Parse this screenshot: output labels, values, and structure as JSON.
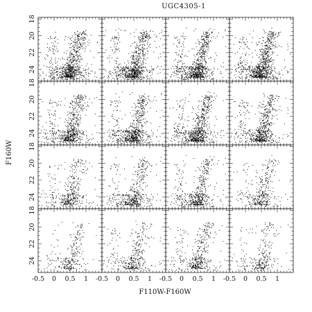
{
  "chart_data": {
    "type": "scatter",
    "title": "UGC4305-1",
    "xlabel": "F110W-F160W",
    "ylabel": "F160W",
    "layout": {
      "rows": 4,
      "cols": 4
    },
    "xlim": [
      -0.5,
      1.5
    ],
    "ylim": [
      25.4,
      17.8
    ],
    "y_inverted": true,
    "xticks": [
      -0.5,
      0,
      0.5,
      1
    ],
    "xtick_labels": [
      "-0.5",
      "0",
      "0.5",
      "1"
    ],
    "yticks": [
      18,
      20,
      22,
      24
    ],
    "ytick_labels": [
      "18",
      "20",
      "22",
      "24"
    ],
    "grid": false,
    "legend": "none",
    "panel_star_density": [
      [
        0.95,
        0.95,
        0.95,
        1.0
      ],
      [
        0.75,
        0.8,
        0.85,
        0.75
      ],
      [
        0.45,
        0.55,
        0.6,
        0.4
      ],
      [
        0.3,
        0.4,
        0.45,
        0.3
      ]
    ]
  }
}
